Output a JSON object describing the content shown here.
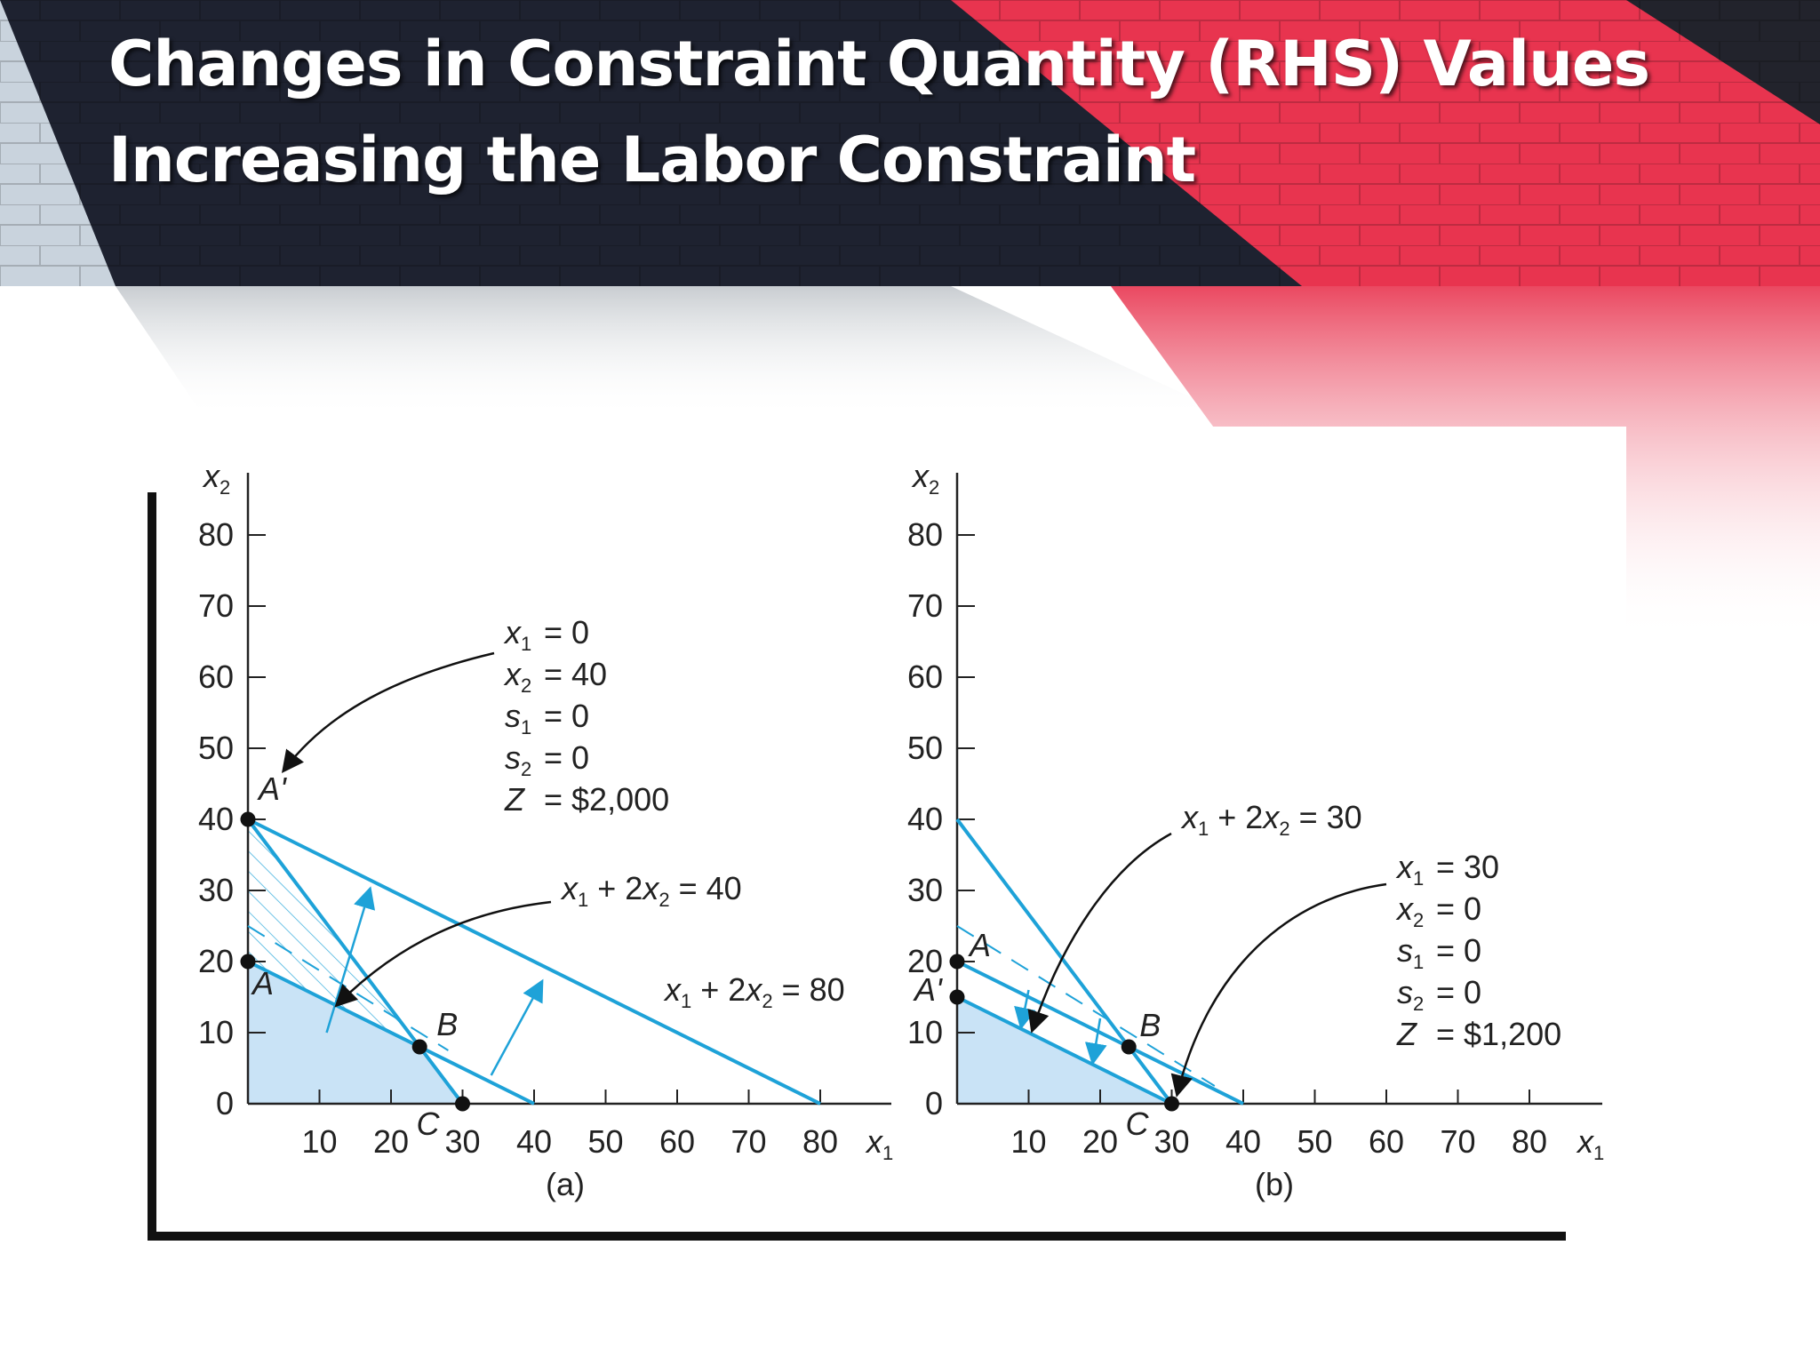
{
  "slide": {
    "title_line1": "Changes in Constraint Quantity (RHS) Values",
    "title_line2": "Increasing the Labor Constraint"
  },
  "colors": {
    "accent_red": "#e8344f",
    "dark_band": "#1e2230",
    "constraint_line": "#1ea2d8",
    "feasible_fill": "#c9e3f6",
    "point": "#111111"
  },
  "chart_data": [
    {
      "type": "line",
      "panel_label": "(a)",
      "xlabel": "x1",
      "ylabel": "x2",
      "xlim": [
        0,
        90
      ],
      "ylim": [
        0,
        85
      ],
      "xticks": [
        10,
        20,
        30,
        40,
        50,
        60,
        70,
        80
      ],
      "xtick_labels": [
        "10",
        "20",
        "30",
        "40",
        "50",
        "60",
        "70",
        "80"
      ],
      "yticks": [
        0,
        10,
        20,
        30,
        40,
        50,
        60,
        70,
        80
      ],
      "ytick_labels": [
        "0",
        "10",
        "20",
        "30",
        "40",
        "50",
        "60",
        "70",
        "80"
      ],
      "lines": [
        {
          "label": "x1 + 2x2 = 40",
          "x": [
            0,
            40
          ],
          "y": [
            20,
            0
          ]
        },
        {
          "label": "x1 + 2x2 = 80",
          "x": [
            0,
            80
          ],
          "y": [
            40,
            0
          ]
        },
        {
          "label": "",
          "x": [
            0,
            30
          ],
          "y": [
            40,
            0
          ]
        },
        {
          "label": "",
          "x": [
            0,
            40
          ],
          "y": [
            25,
            0
          ],
          "style": "dashed"
        }
      ],
      "feasible_region": {
        "x": [
          0,
          0,
          24,
          30
        ],
        "y": [
          0,
          20,
          8,
          0
        ]
      },
      "hatched_region": {
        "x": [
          0,
          0,
          24
        ],
        "y": [
          20,
          40,
          8
        ]
      },
      "points": [
        {
          "label": "A'",
          "x": 0,
          "y": 40
        },
        {
          "label": "A",
          "x": 0,
          "y": 20
        },
        {
          "label": "B",
          "x": 24,
          "y": 8
        },
        {
          "label": "C",
          "x": 30,
          "y": 0
        }
      ],
      "direction_arrows": [
        {
          "from": [
            11,
            10
          ],
          "to": [
            17,
            30
          ]
        },
        {
          "from": [
            34,
            4
          ],
          "to": [
            41,
            17
          ]
        }
      ],
      "callout": {
        "target": "A'",
        "lines": [
          {
            "var": "x",
            "sub": "1",
            "val": "= 0"
          },
          {
            "var": "x",
            "sub": "2",
            "val": "= 40"
          },
          {
            "var": "s",
            "sub": "1",
            "val": "= 0"
          },
          {
            "var": "s",
            "sub": "2",
            "val": "= 0"
          },
          {
            "var": "Z",
            "sub": "",
            "val": "= $2,000"
          }
        ]
      },
      "line_labels": [
        {
          "parts": [
            "x",
            "1",
            " + 2",
            "x",
            "2",
            " = 40"
          ]
        },
        {
          "parts": [
            "x",
            "1",
            " + 2",
            "x",
            "2",
            " = 80"
          ]
        }
      ]
    },
    {
      "type": "line",
      "panel_label": "(b)",
      "xlabel": "x1",
      "ylabel": "x2",
      "xlim": [
        0,
        90
      ],
      "ylim": [
        0,
        85
      ],
      "xticks": [
        10,
        20,
        30,
        40,
        50,
        60,
        70,
        80
      ],
      "xtick_labels": [
        "10",
        "20",
        "30",
        "40",
        "50",
        "60",
        "70",
        "80"
      ],
      "yticks": [
        0,
        10,
        20,
        30,
        40,
        50,
        60,
        70,
        80
      ],
      "ytick_labels": [
        "0",
        "10",
        "20",
        "30",
        "40",
        "50",
        "60",
        "70",
        "80"
      ],
      "lines": [
        {
          "label": "x1 + 2x2 = 30",
          "x": [
            0,
            30
          ],
          "y": [
            15,
            0
          ]
        },
        {
          "label": "",
          "x": [
            0,
            40
          ],
          "y": [
            20,
            0
          ]
        },
        {
          "label": "",
          "x": [
            0,
            30
          ],
          "y": [
            40,
            0
          ]
        },
        {
          "label": "",
          "x": [
            0,
            40
          ],
          "y": [
            25,
            0
          ],
          "style": "dashed"
        }
      ],
      "feasible_region": {
        "x": [
          0,
          0,
          30
        ],
        "y": [
          0,
          15,
          0
        ]
      },
      "points": [
        {
          "label": "A",
          "x": 0,
          "y": 20
        },
        {
          "label": "A'",
          "x": 0,
          "y": 15
        },
        {
          "label": "B",
          "x": 24,
          "y": 8
        },
        {
          "label": "C",
          "x": 30,
          "y": 0
        }
      ],
      "direction_arrows": [
        {
          "from": [
            10,
            16
          ],
          "to": [
            9,
            11
          ]
        },
        {
          "from": [
            20,
            12
          ],
          "to": [
            19,
            6
          ]
        }
      ],
      "callout": {
        "target": "C",
        "lines": [
          {
            "var": "x",
            "sub": "1",
            "val": "= 30"
          },
          {
            "var": "x",
            "sub": "2",
            "val": "= 0"
          },
          {
            "var": "s",
            "sub": "1",
            "val": "= 0"
          },
          {
            "var": "s",
            "sub": "2",
            "val": "= 0"
          },
          {
            "var": "Z",
            "sub": "",
            "val": "= $1,200"
          }
        ]
      },
      "line_labels": [
        {
          "parts": [
            "x",
            "1",
            " + 2",
            "x",
            "2",
            " = 30"
          ]
        }
      ]
    }
  ]
}
